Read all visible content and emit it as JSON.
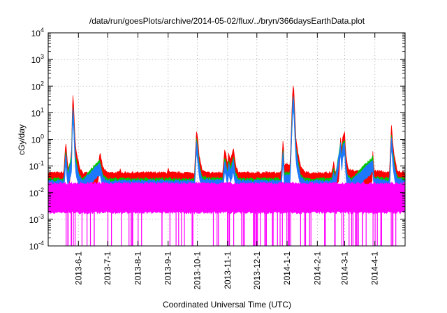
{
  "chart_data": {
    "type": "line",
    "title": "/data/run/goesPlots/archive/2014-05-02/flux/../bryn/366daysEarthData.plot",
    "xlabel": "Coordinated Universal Time (UTC)",
    "ylabel": "cGy/day",
    "yscale": "log",
    "ylim": [
      0.0001,
      10000
    ],
    "xlim": [
      "2013-05-01",
      "2014-05-02"
    ],
    "grid": true,
    "legend": "none",
    "y_ticks": [
      {
        "base": "10",
        "exp": "-4",
        "value": 0.0001
      },
      {
        "base": "10",
        "exp": "-3",
        "value": 0.001
      },
      {
        "base": "10",
        "exp": "-2",
        "value": 0.01
      },
      {
        "base": "10",
        "exp": "-1",
        "value": 0.1
      },
      {
        "base": "10",
        "exp": "0",
        "value": 1
      },
      {
        "base": "10",
        "exp": "1",
        "value": 10
      },
      {
        "base": "10",
        "exp": "2",
        "value": 100
      },
      {
        "base": "10",
        "exp": "3",
        "value": 1000
      },
      {
        "base": "10",
        "exp": "4",
        "value": 10000
      }
    ],
    "x_ticks": [
      {
        "label": "2013-6-1",
        "date": "2013-06-01"
      },
      {
        "label": "2013-7-1",
        "date": "2013-07-01"
      },
      {
        "label": "2013-8-1",
        "date": "2013-08-01"
      },
      {
        "label": "2013-9-1",
        "date": "2013-09-01"
      },
      {
        "label": "2013-10-1",
        "date": "2013-10-01"
      },
      {
        "label": "2013-11-1",
        "date": "2013-11-01"
      },
      {
        "label": "2013-12-1",
        "date": "2013-12-01"
      },
      {
        "label": "2014-1-1",
        "date": "2014-01-01"
      },
      {
        "label": "2014-2-1",
        "date": "2014-02-01"
      },
      {
        "label": "2014-3-1",
        "date": "2014-03-01"
      },
      {
        "label": "2014-4-1",
        "date": "2014-04-01"
      }
    ],
    "series": [
      {
        "color": "#ff0000",
        "baseline": 0.05,
        "points": [
          [
            "2013-05-01",
            0.05
          ],
          [
            "2013-05-17",
            0.05
          ],
          [
            "2013-05-19",
            0.8
          ],
          [
            "2013-05-21",
            0.1
          ],
          [
            "2013-05-23",
            0.05
          ],
          [
            "2013-05-25",
            0.4
          ],
          [
            "2013-05-26",
            50
          ],
          [
            "2013-05-27",
            20
          ],
          [
            "2013-05-29",
            0.5
          ],
          [
            "2013-06-02",
            0.08
          ],
          [
            "2013-06-05",
            0.05
          ],
          [
            "2013-06-21",
            0.05
          ],
          [
            "2013-06-23",
            0.3
          ],
          [
            "2013-06-26",
            0.08
          ],
          [
            "2013-06-30",
            0.05
          ],
          [
            "2013-07-13",
            0.05
          ],
          [
            "2013-07-14",
            0.08
          ],
          [
            "2013-07-15",
            0.05
          ],
          [
            "2013-08-31",
            0.05
          ],
          [
            "2013-09-01",
            0.08
          ],
          [
            "2013-09-02",
            0.05
          ],
          [
            "2013-09-28",
            0.05
          ],
          [
            "2013-09-30",
            1.8
          ],
          [
            "2013-10-01",
            1.2
          ],
          [
            "2013-10-03",
            0.2
          ],
          [
            "2013-10-06",
            0.06
          ],
          [
            "2013-10-10",
            0.05
          ],
          [
            "2013-10-27",
            0.05
          ],
          [
            "2013-10-29",
            0.4
          ],
          [
            "2013-10-30",
            0.3
          ],
          [
            "2013-11-01",
            0.1
          ],
          [
            "2013-11-02",
            0.3
          ],
          [
            "2013-11-04",
            0.15
          ],
          [
            "2013-11-07",
            0.4
          ],
          [
            "2013-11-09",
            0.1
          ],
          [
            "2013-11-12",
            0.05
          ],
          [
            "2013-12-26",
            0.05
          ],
          [
            "2013-12-28",
            1.2
          ],
          [
            "2013-12-29",
            0.1
          ],
          [
            "2014-01-04",
            0.1
          ],
          [
            "2014-01-06",
            15
          ],
          [
            "2014-01-07",
            100
          ],
          [
            "2014-01-08",
            60
          ],
          [
            "2014-01-09",
            8
          ],
          [
            "2014-01-10",
            1
          ],
          [
            "2014-01-12",
            0.3
          ],
          [
            "2014-01-15",
            0.08
          ],
          [
            "2014-01-20",
            0.05
          ],
          [
            "2014-02-16",
            0.05
          ],
          [
            "2014-02-18",
            0.15
          ],
          [
            "2014-02-19",
            0.05
          ],
          [
            "2014-02-23",
            0.06
          ],
          [
            "2014-02-25",
            1.5
          ],
          [
            "2014-02-26",
            0.3
          ],
          [
            "2014-02-27",
            1.2
          ],
          [
            "2014-03-01",
            1.8
          ],
          [
            "2014-03-02",
            0.3
          ],
          [
            "2014-03-04",
            0.08
          ],
          [
            "2014-03-08",
            0.06
          ],
          [
            "2014-03-29",
            0.05
          ],
          [
            "2014-03-30",
            0.4
          ],
          [
            "2014-03-31",
            0.06
          ],
          [
            "2014-04-16",
            0.05
          ],
          [
            "2014-04-18",
            3.5
          ],
          [
            "2014-04-19",
            1
          ],
          [
            "2014-04-21",
            0.2
          ],
          [
            "2014-04-24",
            0.06
          ],
          [
            "2014-05-02",
            0.05
          ]
        ]
      },
      {
        "color": "#00c800",
        "baseline": 0.03,
        "points": [
          [
            "2013-05-01",
            0.03
          ],
          [
            "2013-05-17",
            0.03
          ],
          [
            "2013-05-19",
            0.4
          ],
          [
            "2013-05-21",
            0.05
          ],
          [
            "2013-05-25",
            0.2
          ],
          [
            "2013-05-26",
            20
          ],
          [
            "2013-05-27",
            8
          ],
          [
            "2013-05-29",
            0.2
          ],
          [
            "2013-06-02",
            0.04
          ],
          [
            "2013-06-05",
            0.03
          ],
          [
            "2013-06-23",
            0.15
          ],
          [
            "2013-06-26",
            0.04
          ],
          [
            "2013-06-30",
            0.03
          ],
          [
            "2013-09-28",
            0.03
          ],
          [
            "2013-09-30",
            0.9
          ],
          [
            "2013-10-01",
            0.6
          ],
          [
            "2013-10-03",
            0.1
          ],
          [
            "2013-10-06",
            0.035
          ],
          [
            "2013-10-27",
            0.03
          ],
          [
            "2013-10-29",
            0.2
          ],
          [
            "2013-10-30",
            0.15
          ],
          [
            "2013-11-01",
            0.05
          ],
          [
            "2013-11-02",
            0.15
          ],
          [
            "2013-11-04",
            0.08
          ],
          [
            "2013-11-07",
            0.2
          ],
          [
            "2013-11-09",
            0.05
          ],
          [
            "2013-11-12",
            0.03
          ],
          [
            "2013-12-26",
            0.03
          ],
          [
            "2013-12-28",
            0.6
          ],
          [
            "2013-12-29",
            0.05
          ],
          [
            "2014-01-04",
            0.05
          ],
          [
            "2014-01-06",
            6
          ],
          [
            "2014-01-07",
            45
          ],
          [
            "2014-01-08",
            25
          ],
          [
            "2014-01-09",
            3
          ],
          [
            "2014-01-10",
            0.5
          ],
          [
            "2014-01-12",
            0.15
          ],
          [
            "2014-01-15",
            0.04
          ],
          [
            "2014-01-20",
            0.03
          ],
          [
            "2014-02-16",
            0.03
          ],
          [
            "2014-02-18",
            0.08
          ],
          [
            "2014-02-19",
            0.03
          ],
          [
            "2014-02-25",
            0.8
          ],
          [
            "2014-02-26",
            0.15
          ],
          [
            "2014-02-27",
            0.6
          ],
          [
            "2014-03-01",
            0.9
          ],
          [
            "2014-03-02",
            0.15
          ],
          [
            "2014-03-04",
            0.04
          ],
          [
            "2014-03-08",
            0.03
          ],
          [
            "2014-03-30",
            0.2
          ],
          [
            "2014-03-31",
            0.035
          ],
          [
            "2014-04-16",
            0.03
          ],
          [
            "2014-04-18",
            1.6
          ],
          [
            "2014-04-19",
            0.5
          ],
          [
            "2014-04-21",
            0.1
          ],
          [
            "2014-04-24",
            0.035
          ],
          [
            "2014-05-02",
            0.03
          ]
        ]
      },
      {
        "color": "#1e78ff",
        "baseline": 0.025,
        "points": [
          [
            "2013-05-01",
            0.025
          ],
          [
            "2013-05-17",
            0.025
          ],
          [
            "2013-05-19",
            0.35
          ],
          [
            "2013-05-21",
            0.04
          ],
          [
            "2013-05-25",
            0.15
          ],
          [
            "2013-05-26",
            18
          ],
          [
            "2013-05-27",
            7
          ],
          [
            "2013-05-29",
            0.15
          ],
          [
            "2013-06-02",
            0.035
          ],
          [
            "2013-06-05",
            0.025
          ],
          [
            "2013-06-23",
            0.12
          ],
          [
            "2013-06-26",
            0.035
          ],
          [
            "2013-06-30",
            0.025
          ],
          [
            "2013-09-28",
            0.025
          ],
          [
            "2013-09-30",
            0.8
          ],
          [
            "2013-10-01",
            0.5
          ],
          [
            "2013-10-03",
            0.08
          ],
          [
            "2013-10-06",
            0.03
          ],
          [
            "2013-10-27",
            0.025
          ],
          [
            "2013-10-29",
            0.15
          ],
          [
            "2013-10-30",
            0.12
          ],
          [
            "2013-11-01",
            0.04
          ],
          [
            "2013-11-02",
            0.12
          ],
          [
            "2013-11-04",
            0.06
          ],
          [
            "2013-11-07",
            0.15
          ],
          [
            "2013-11-09",
            0.04
          ],
          [
            "2013-11-12",
            0.025
          ],
          [
            "2013-12-26",
            0.025
          ],
          [
            "2013-12-28",
            0.5
          ],
          [
            "2013-12-29",
            0.04
          ],
          [
            "2014-01-04",
            0.04
          ],
          [
            "2014-01-06",
            5
          ],
          [
            "2014-01-07",
            40
          ],
          [
            "2014-01-08",
            20
          ],
          [
            "2014-01-09",
            2.5
          ],
          [
            "2014-01-10",
            0.4
          ],
          [
            "2014-01-12",
            0.12
          ],
          [
            "2014-01-15",
            0.035
          ],
          [
            "2014-01-20",
            0.025
          ],
          [
            "2014-02-16",
            0.025
          ],
          [
            "2014-02-18",
            0.06
          ],
          [
            "2014-02-19",
            0.025
          ],
          [
            "2014-02-25",
            0.7
          ],
          [
            "2014-02-26",
            0.12
          ],
          [
            "2014-02-27",
            0.5
          ],
          [
            "2014-03-01",
            0.8
          ],
          [
            "2014-03-02",
            0.12
          ],
          [
            "2014-03-04",
            0.035
          ],
          [
            "2014-03-08",
            0.025
          ],
          [
            "2014-03-30",
            0.15
          ],
          [
            "2014-03-31",
            0.03
          ],
          [
            "2014-04-16",
            0.025
          ],
          [
            "2014-04-18",
            1.4
          ],
          [
            "2014-04-19",
            0.4
          ],
          [
            "2014-04-21",
            0.08
          ],
          [
            "2014-04-24",
            0.03
          ],
          [
            "2014-05-02",
            0.025
          ]
        ]
      },
      {
        "color": "#ff00ff",
        "baseline": 0.02,
        "floor": 0.002,
        "points": [
          [
            "2013-05-01",
            0.02
          ],
          [
            "2014-01-07",
            0.02
          ],
          [
            "2014-02-27",
            0.02
          ],
          [
            "2014-05-02",
            0.02
          ]
        ]
      }
    ]
  }
}
